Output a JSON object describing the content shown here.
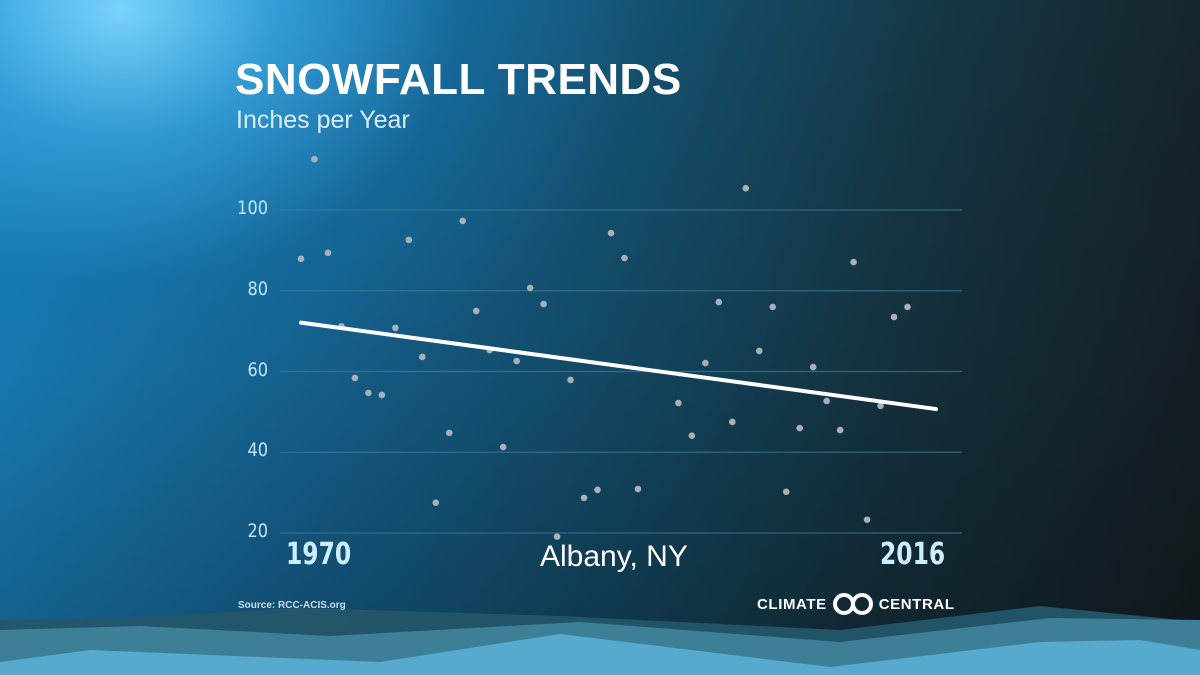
{
  "header": {
    "title": "SNOWFALL TRENDS",
    "subtitle": "Inches per Year"
  },
  "footer": {
    "location": "Albany, NY",
    "source": "Source: RCC-ACIS.org",
    "logo_left": "CLIMATE",
    "logo_right": "CENTRAL"
  },
  "colors": {
    "point": "#a9b1b6",
    "trend": "#ffffff",
    "gridline": "#3f7d99",
    "ytick": "#bfe6fb",
    "xlabel": "#cdeeff"
  },
  "chart_data": {
    "type": "scatter",
    "title": "SNOWFALL TRENDS",
    "subtitle": "Inches per Year",
    "annotation": "Albany, NY",
    "source": "Source: RCC-ACIS.org",
    "xlabel": "",
    "ylabel": "Inches per Year",
    "x_range": [
      1970,
      2016
    ],
    "x_tick_labels": [
      "1970",
      "2016"
    ],
    "ylim": [
      20,
      100
    ],
    "y_ticks": [
      20,
      40,
      60,
      80,
      100
    ],
    "grid": true,
    "legend": null,
    "series": [
      {
        "name": "Annual snowfall",
        "type": "scatter",
        "points": [
          {
            "x": 1970,
            "y": 87.9
          },
          {
            "x": 1971,
            "y": 112.6
          },
          {
            "x": 1972,
            "y": 89.4
          },
          {
            "x": 1973,
            "y": 71.2
          },
          {
            "x": 1974,
            "y": 58.4
          },
          {
            "x": 1975,
            "y": 54.7
          },
          {
            "x": 1976,
            "y": 54.2
          },
          {
            "x": 1977,
            "y": 70.8
          },
          {
            "x": 1978,
            "y": 92.6
          },
          {
            "x": 1979,
            "y": 63.6
          },
          {
            "x": 1980,
            "y": 27.5
          },
          {
            "x": 1981,
            "y": 44.8
          },
          {
            "x": 1982,
            "y": 97.3
          },
          {
            "x": 1983,
            "y": 75.0
          },
          {
            "x": 1984,
            "y": 65.3
          },
          {
            "x": 1985,
            "y": 41.3
          },
          {
            "x": 1986,
            "y": 62.6
          },
          {
            "x": 1987,
            "y": 80.7
          },
          {
            "x": 1988,
            "y": 76.7
          },
          {
            "x": 1989,
            "y": 19.1
          },
          {
            "x": 1990,
            "y": 57.9
          },
          {
            "x": 1991,
            "y": 28.7
          },
          {
            "x": 1992,
            "y": 30.7
          },
          {
            "x": 1993,
            "y": 94.3
          },
          {
            "x": 1994,
            "y": 88.1
          },
          {
            "x": 1995,
            "y": 30.9
          },
          {
            "x": 1998,
            "y": 52.2
          },
          {
            "x": 1999,
            "y": 44.1
          },
          {
            "x": 2000,
            "y": 62.1
          },
          {
            "x": 2001,
            "y": 77.2
          },
          {
            "x": 2002,
            "y": 47.5
          },
          {
            "x": 2003,
            "y": 105.4
          },
          {
            "x": 2004,
            "y": 65.1
          },
          {
            "x": 2005,
            "y": 76.0
          },
          {
            "x": 2006,
            "y": 30.2
          },
          {
            "x": 2007,
            "y": 46.0
          },
          {
            "x": 2008,
            "y": 61.1
          },
          {
            "x": 2009,
            "y": 52.7
          },
          {
            "x": 2010,
            "y": 45.5
          },
          {
            "x": 2011,
            "y": 87.1
          },
          {
            "x": 2012,
            "y": 23.3
          },
          {
            "x": 2013,
            "y": 51.5
          },
          {
            "x": 2014,
            "y": 73.5
          },
          {
            "x": 2015,
            "y": 76.0
          }
        ]
      },
      {
        "name": "Trend",
        "type": "line",
        "points": [
          {
            "x": 1970,
            "y": 72.1
          },
          {
            "x": 2016,
            "y": 50.7
          }
        ]
      }
    ]
  }
}
